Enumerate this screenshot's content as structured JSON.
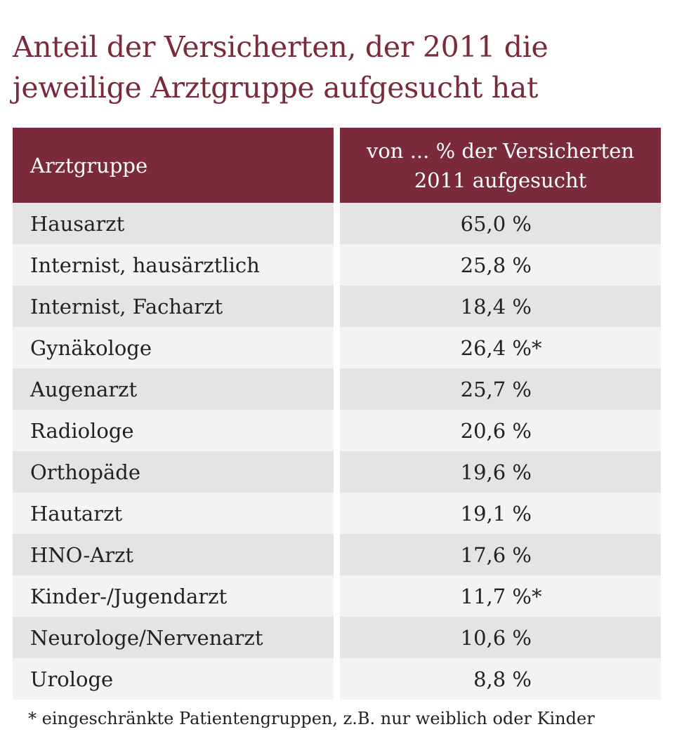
{
  "title_lines": [
    "Anteil der Versicherten, der 2011 die",
    "jeweilige Arztgruppe aufgesucht hat"
  ],
  "colors": {
    "header_bg": "#7a2a3a",
    "title": "#7a2a3a",
    "row_odd": "#e4e4e4",
    "row_even": "#f3f3f3"
  },
  "chart_data": {
    "type": "table",
    "title": "Anteil der Versicherten, der 2011 die jeweilige Arztgruppe aufgesucht hat",
    "columns": [
      "Arztgruppe",
      "von ... % der Versicherten 2011 aufgesucht"
    ],
    "header_col2_lines": [
      "von ... % der Versicherten",
      "2011 aufgesucht"
    ],
    "rows": [
      {
        "group": "Hausarzt",
        "value_text": "65,0 %",
        "value": 65.0,
        "note": ""
      },
      {
        "group": "Internist, hausärztlich",
        "value_text": "25,8 %",
        "value": 25.8,
        "note": ""
      },
      {
        "group": "Internist, Facharzt",
        "value_text": "18,4 %",
        "value": 18.4,
        "note": ""
      },
      {
        "group": "Gynäkologe",
        "value_text": "26,4 %",
        "value": 26.4,
        "note": "*"
      },
      {
        "group": "Augenarzt",
        "value_text": "25,7 %",
        "value": 25.7,
        "note": ""
      },
      {
        "group": "Radiologe",
        "value_text": "20,6 %",
        "value": 20.6,
        "note": ""
      },
      {
        "group": "Orthopäde",
        "value_text": "19,6 %",
        "value": 19.6,
        "note": ""
      },
      {
        "group": "Hautarzt",
        "value_text": "19,1 %",
        "value": 19.1,
        "note": ""
      },
      {
        "group": "HNO-Arzt",
        "value_text": "17,6 %",
        "value": 17.6,
        "note": ""
      },
      {
        "group": "Kinder-/Jugendarzt",
        "value_text": "11,7 %",
        "value": 11.7,
        "note": "*"
      },
      {
        "group": "Neurologe/Nervenarzt",
        "value_text": "10,6 %",
        "value": 10.6,
        "note": ""
      },
      {
        "group": "Urologe",
        "value_text": "8,8 %",
        "value": 8.8,
        "note": ""
      }
    ]
  },
  "footnote": "* eingeschränkte Patientengruppen, z.B. nur weiblich oder Kinder"
}
